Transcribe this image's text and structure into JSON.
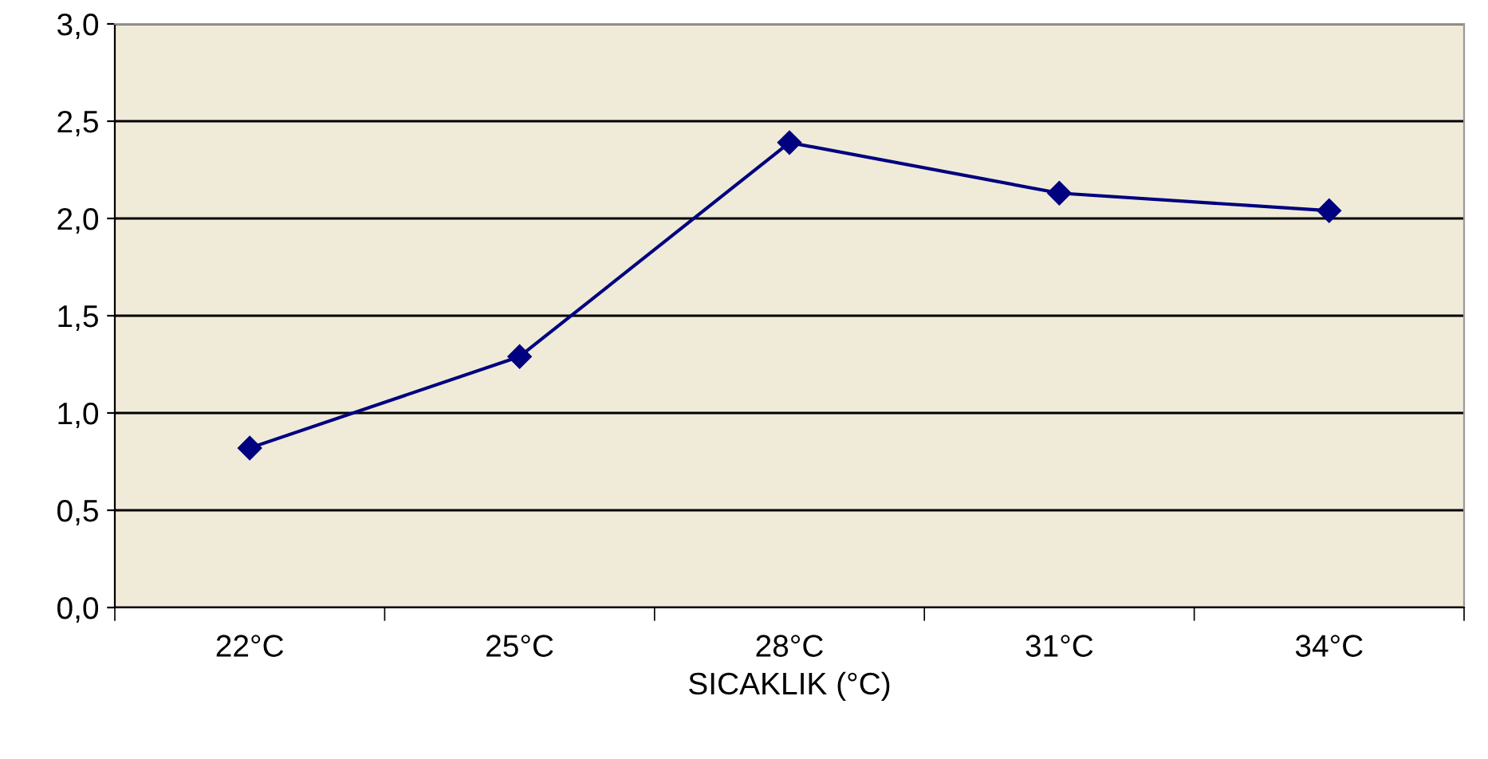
{
  "chart_data": {
    "type": "line",
    "xlabel": "SICAKLIK (°C)",
    "categories": [
      "22°C",
      "25°C",
      "28°C",
      "31°C",
      "34°C"
    ],
    "series": [
      {
        "color": "#000080",
        "values": [
          0.82,
          1.29,
          2.39,
          2.13,
          2.04
        ]
      }
    ],
    "ylim": [
      0,
      3
    ],
    "yticks": [
      {
        "value": 0,
        "label": "0,0"
      },
      {
        "value": 0.5,
        "label": "0,5"
      },
      {
        "value": 1,
        "label": "1,0"
      },
      {
        "value": 1.5,
        "label": "1,5"
      },
      {
        "value": 2,
        "label": "2,0"
      },
      {
        "value": 2.5,
        "label": "2,5"
      },
      {
        "value": 3,
        "label": "3,0"
      }
    ],
    "grid": "y",
    "legend": false,
    "marker": "diamond",
    "line_style": "solid"
  }
}
